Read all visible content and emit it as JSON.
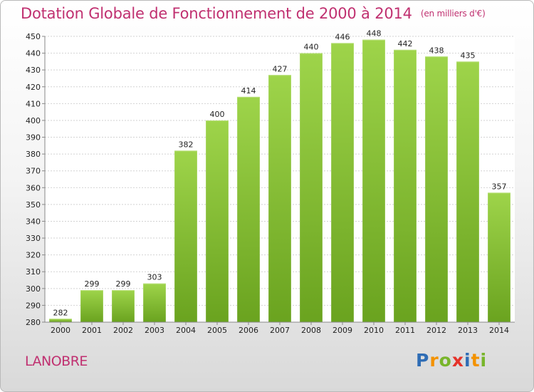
{
  "chart_data": {
    "type": "bar",
    "title": "Dotation Globale de Fonctionnement de 2000 à 2014",
    "subtitle": "(en milliers d'€)",
    "categories": [
      "2000",
      "2001",
      "2002",
      "2003",
      "2004",
      "2005",
      "2006",
      "2007",
      "2008",
      "2009",
      "2010",
      "2011",
      "2012",
      "2013",
      "2014"
    ],
    "values": [
      282,
      299,
      299,
      303,
      382,
      400,
      414,
      427,
      440,
      446,
      448,
      442,
      438,
      435,
      357
    ],
    "ylim": [
      280,
      450
    ],
    "yticks": [
      280,
      290,
      300,
      310,
      320,
      330,
      340,
      350,
      360,
      370,
      380,
      390,
      400,
      410,
      420,
      430,
      440,
      450
    ],
    "grid": true,
    "bar_color": "#7cb82f",
    "title_color": "#c03070"
  },
  "commune": "LANOBRE",
  "logo": {
    "letters": [
      "P",
      "r",
      "o",
      "x",
      "i",
      "t",
      "i"
    ],
    "colors": [
      "#2f6db5",
      "#f39200",
      "#78b52a",
      "#e5332a",
      "#2f6db5",
      "#f39200",
      "#78b52a"
    ]
  }
}
